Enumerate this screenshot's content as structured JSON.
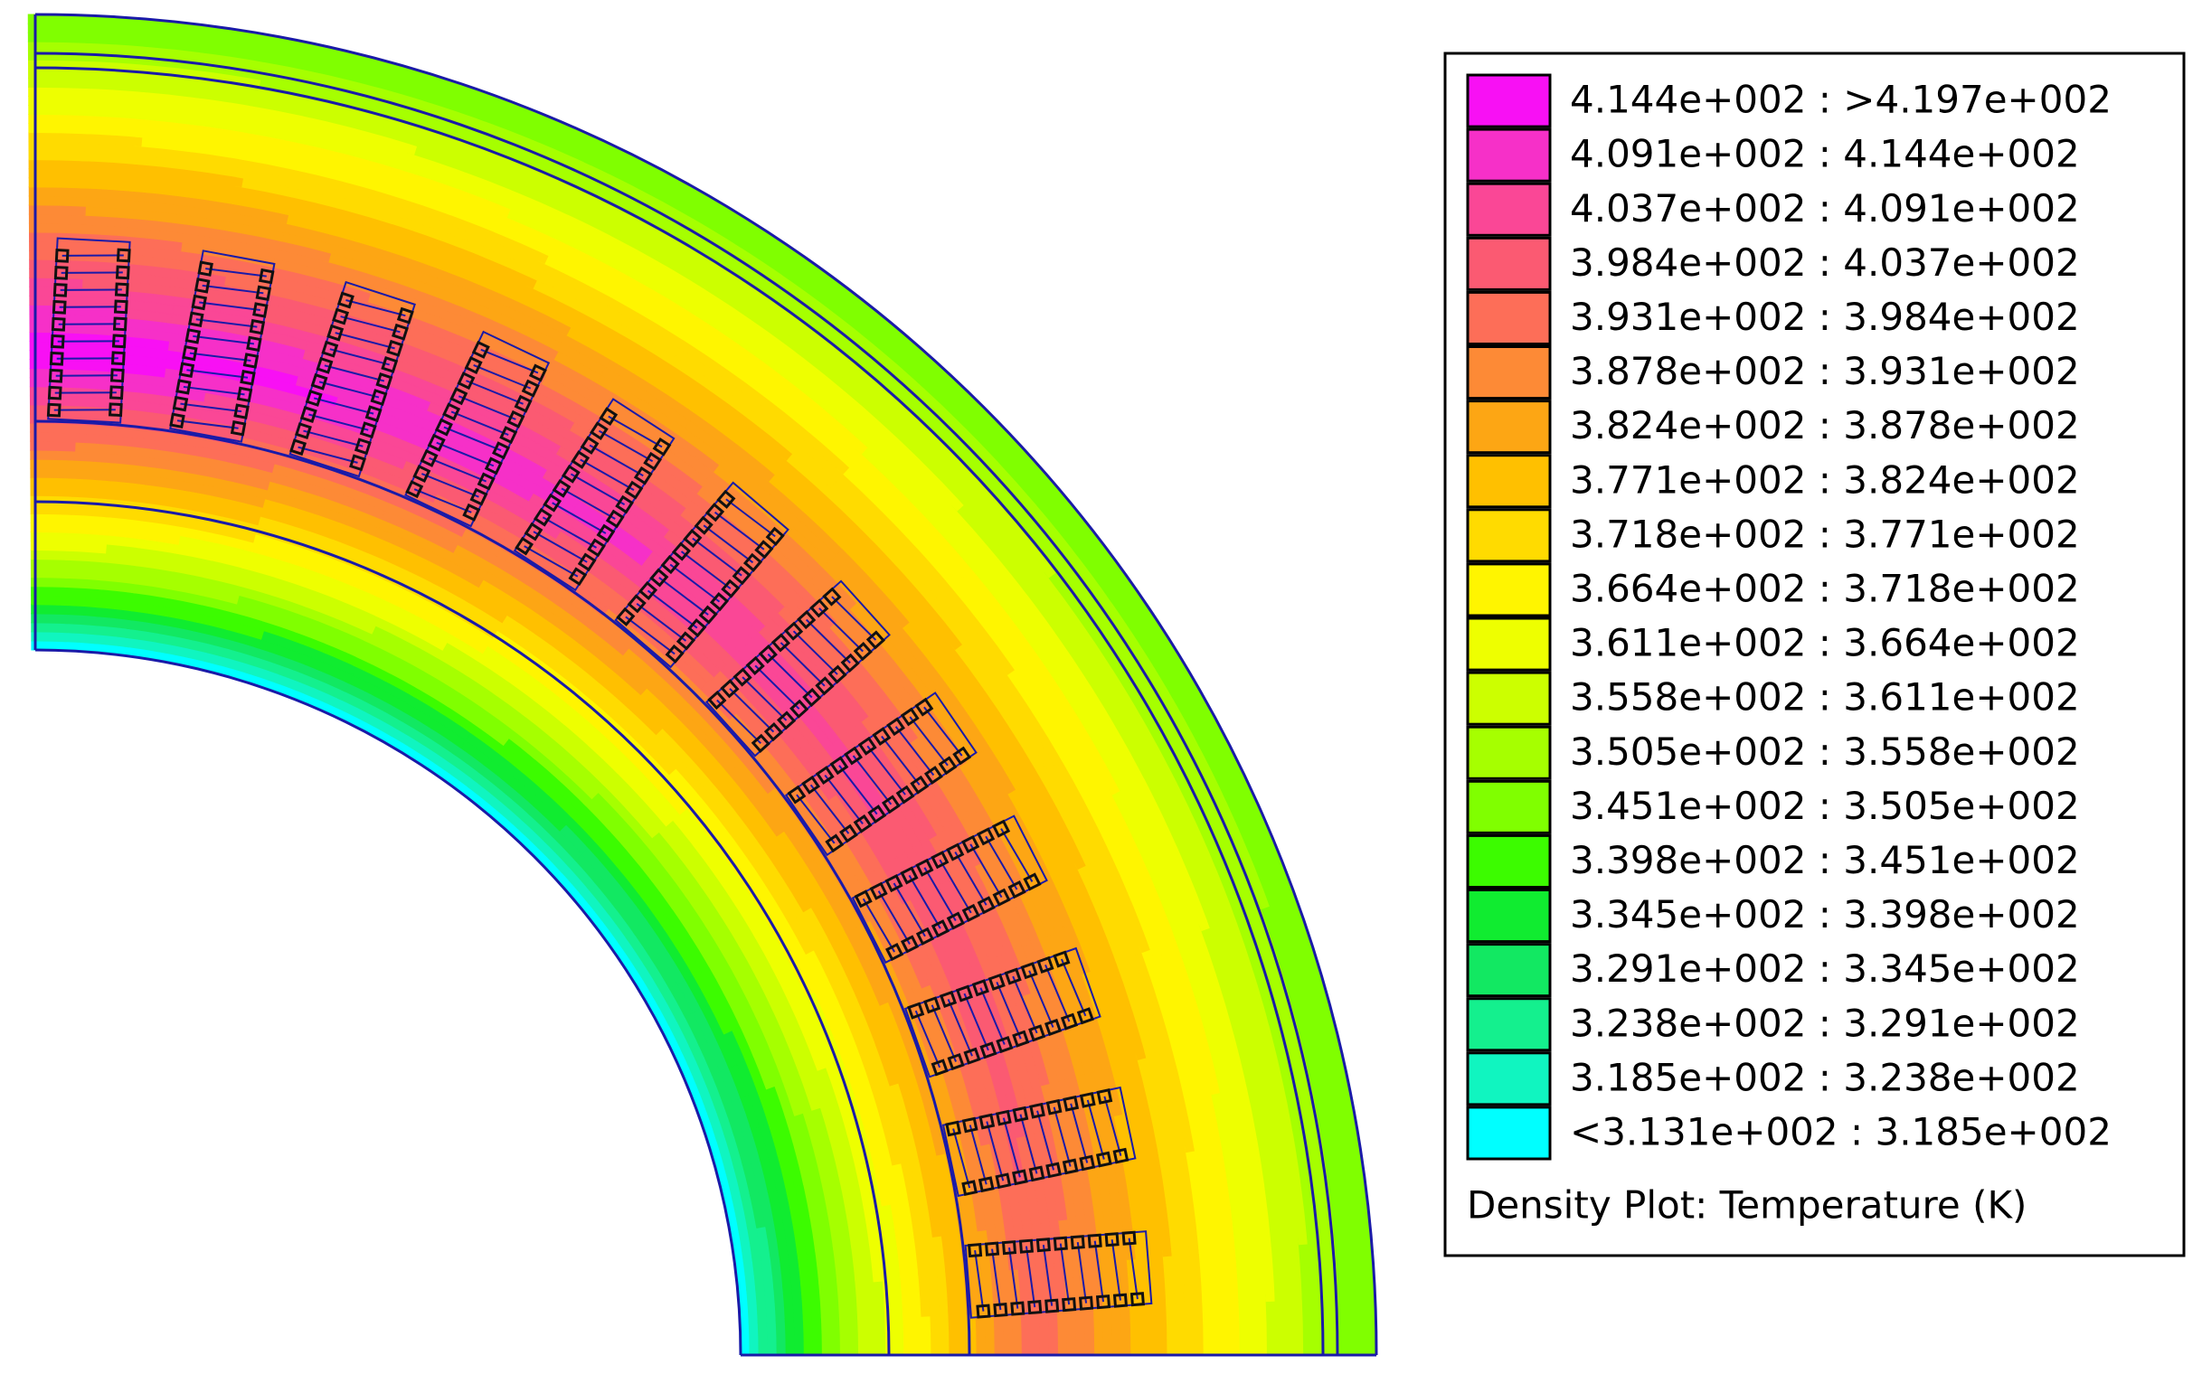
{
  "legend": {
    "entries": [
      {
        "label": "4.144e+002 : >4.197e+002",
        "color": "#f810f4"
      },
      {
        "label": "4.091e+002 : 4.144e+002",
        "color": "#f630c8"
      },
      {
        "label": "4.037e+002 : 4.091e+002",
        "color": "#fa4796"
      },
      {
        "label": "3.984e+002 : 4.037e+002",
        "color": "#fb5a72"
      },
      {
        "label": "3.931e+002 : 3.984e+002",
        "color": "#fd6e58"
      },
      {
        "label": "3.878e+002 : 3.931e+002",
        "color": "#fd8a36"
      },
      {
        "label": "3.824e+002 : 3.878e+002",
        "color": "#fda614"
      },
      {
        "label": "3.771e+002 : 3.824e+002",
        "color": "#ffc000"
      },
      {
        "label": "3.718e+002 : 3.771e+002",
        "color": "#ffdb00"
      },
      {
        "label": "3.664e+002 : 3.718e+002",
        "color": "#fff500"
      },
      {
        "label": "3.611e+002 : 3.664e+002",
        "color": "#eeff00"
      },
      {
        "label": "3.558e+002 : 3.611e+002",
        "color": "#ccff00"
      },
      {
        "label": "3.505e+002 : 3.558e+002",
        "color": "#a6ff00"
      },
      {
        "label": "3.451e+002 : 3.505e+002",
        "color": "#80ff00"
      },
      {
        "label": "3.398e+002 : 3.451e+002",
        "color": "#3cfc00"
      },
      {
        "label": "3.345e+002 : 3.398e+002",
        "color": "#10ec30"
      },
      {
        "label": "3.291e+002 : 3.345e+002",
        "color": "#12e862"
      },
      {
        "label": "3.238e+002 : 3.291e+002",
        "color": "#14f08e"
      },
      {
        "label": "3.185e+002 : 3.238e+002",
        "color": "#10f5c0"
      },
      {
        "label": "<3.131e+002 : 3.185e+002",
        "color": "#00ffff"
      }
    ],
    "title": "Density Plot: Temperature (K)"
  }
}
